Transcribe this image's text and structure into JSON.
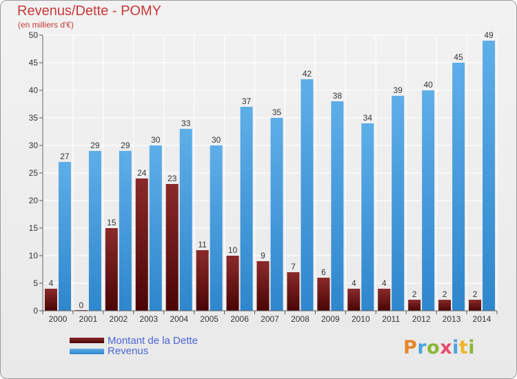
{
  "header": {
    "title": "Revenus/Dette - POMY",
    "subtitle": "(en milliers d'€)"
  },
  "legend": {
    "items": [
      {
        "label": "Montant de la Dette",
        "color": "#6b1010"
      },
      {
        "label": "Revenus",
        "color": "#4da3e0"
      }
    ]
  },
  "logo": {
    "text": "Proxiti"
  },
  "colors": {
    "dette_top": "#8a2a2a",
    "dette_bottom": "#4a0505",
    "revenus_top": "#5eaee8",
    "revenus_bottom": "#2e86cc",
    "grid": "#ffffff",
    "axis_text": "#333333",
    "title": "#c83838"
  },
  "chart_data": {
    "type": "bar",
    "title": "Revenus/Dette - POMY",
    "ylabel": "(en milliers d'€)",
    "xlabel": "",
    "ylim": [
      0,
      50
    ],
    "yticks": [
      0,
      5,
      10,
      15,
      20,
      25,
      30,
      35,
      40,
      45,
      50
    ],
    "grid": true,
    "legend_position": "bottom-left",
    "categories": [
      "2000",
      "2001",
      "2002",
      "2003",
      "2004",
      "2005",
      "2006",
      "2007",
      "2008",
      "2009",
      "2010",
      "2011",
      "2012",
      "2013",
      "2014"
    ],
    "series": [
      {
        "name": "Montant de la Dette",
        "values": [
          4,
          0,
          15,
          24,
          23,
          11,
          10,
          9,
          7,
          6,
          4,
          4,
          2,
          2,
          2
        ]
      },
      {
        "name": "Revenus",
        "values": [
          27,
          29,
          29,
          30,
          33,
          30,
          37,
          35,
          42,
          38,
          34,
          39,
          40,
          45,
          49
        ]
      }
    ]
  }
}
